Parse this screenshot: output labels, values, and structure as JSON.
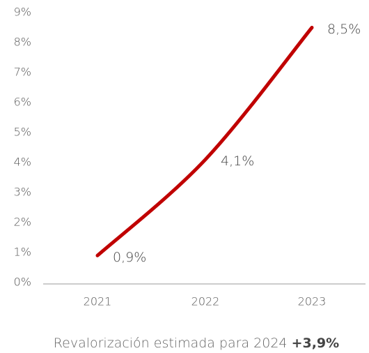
{
  "chart_data": {
    "type": "line",
    "categories": [
      "2021",
      "2022",
      "2023"
    ],
    "values": [
      0.9,
      4.1,
      8.5
    ],
    "value_labels": [
      "0,9%",
      "4,1%",
      "8,5%"
    ],
    "color": "#c00000",
    "ylim": [
      0,
      9
    ],
    "yticks": [
      {
        "value": 0,
        "label": "0%"
      },
      {
        "value": 1,
        "label": "1%"
      },
      {
        "value": 2,
        "label": "2%"
      },
      {
        "value": 3,
        "label": "3%"
      },
      {
        "value": 4,
        "label": "4%"
      },
      {
        "value": 5,
        "label": "5%"
      },
      {
        "value": 6,
        "label": "6%"
      },
      {
        "value": 7,
        "label": "7%"
      },
      {
        "value": 8,
        "label": "8%"
      },
      {
        "value": 9,
        "label": "9%"
      }
    ],
    "grid": false,
    "note": "Revalorización estimada para 2024",
    "note_value": "+3,9%"
  }
}
